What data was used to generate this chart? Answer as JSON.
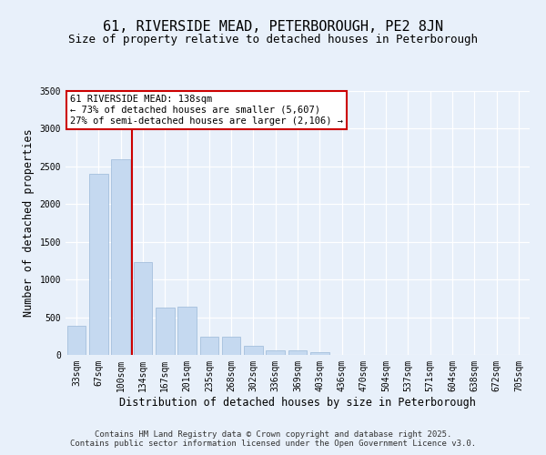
{
  "title": "61, RIVERSIDE MEAD, PETERBOROUGH, PE2 8JN",
  "subtitle": "Size of property relative to detached houses in Peterborough",
  "xlabel": "Distribution of detached houses by size in Peterborough",
  "ylabel": "Number of detached properties",
  "categories": [
    "33sqm",
    "67sqm",
    "100sqm",
    "134sqm",
    "167sqm",
    "201sqm",
    "235sqm",
    "268sqm",
    "302sqm",
    "336sqm",
    "369sqm",
    "403sqm",
    "436sqm",
    "470sqm",
    "504sqm",
    "537sqm",
    "571sqm",
    "604sqm",
    "638sqm",
    "672sqm",
    "705sqm"
  ],
  "values": [
    390,
    2400,
    2600,
    1230,
    630,
    640,
    240,
    245,
    115,
    60,
    55,
    40,
    0,
    0,
    0,
    0,
    0,
    0,
    0,
    0,
    0
  ],
  "bar_color": "#c5d9f0",
  "bar_edge_color": "#9ab8d8",
  "vline_x_index": 2.5,
  "vline_color": "#cc0000",
  "annotation_text": "61 RIVERSIDE MEAD: 138sqm\n← 73% of detached houses are smaller (5,607)\n27% of semi-detached houses are larger (2,106) →",
  "annotation_box_edgecolor": "#cc0000",
  "ylim": [
    0,
    3500
  ],
  "yticks": [
    0,
    500,
    1000,
    1500,
    2000,
    2500,
    3000,
    3500
  ],
  "footer_text": "Contains HM Land Registry data © Crown copyright and database right 2025.\nContains public sector information licensed under the Open Government Licence v3.0.",
  "bg_color": "#e8f0fa",
  "plot_bg_color": "#e8f0fa",
  "grid_color": "#ffffff",
  "title_fontsize": 11,
  "subtitle_fontsize": 9,
  "axis_label_fontsize": 8.5,
  "tick_fontsize": 7,
  "footer_fontsize": 6.5,
  "annotation_fontsize": 7.5
}
